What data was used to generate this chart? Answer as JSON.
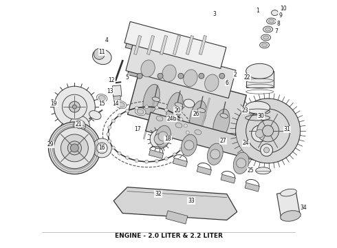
{
  "caption": "ENGINE - 2.0 LITER & 2.2 LITER",
  "caption_fontsize": 6.5,
  "caption_fontweight": "bold",
  "background_color": "#ffffff",
  "figsize": [
    4.9,
    3.6
  ],
  "dpi": 100,
  "text_color": "#111111",
  "lc": "#333333",
  "lc2": "#555555",
  "fc_light": "#e8e8e8",
  "fc_mid": "#cccccc",
  "fc_dark": "#aaaaaa"
}
